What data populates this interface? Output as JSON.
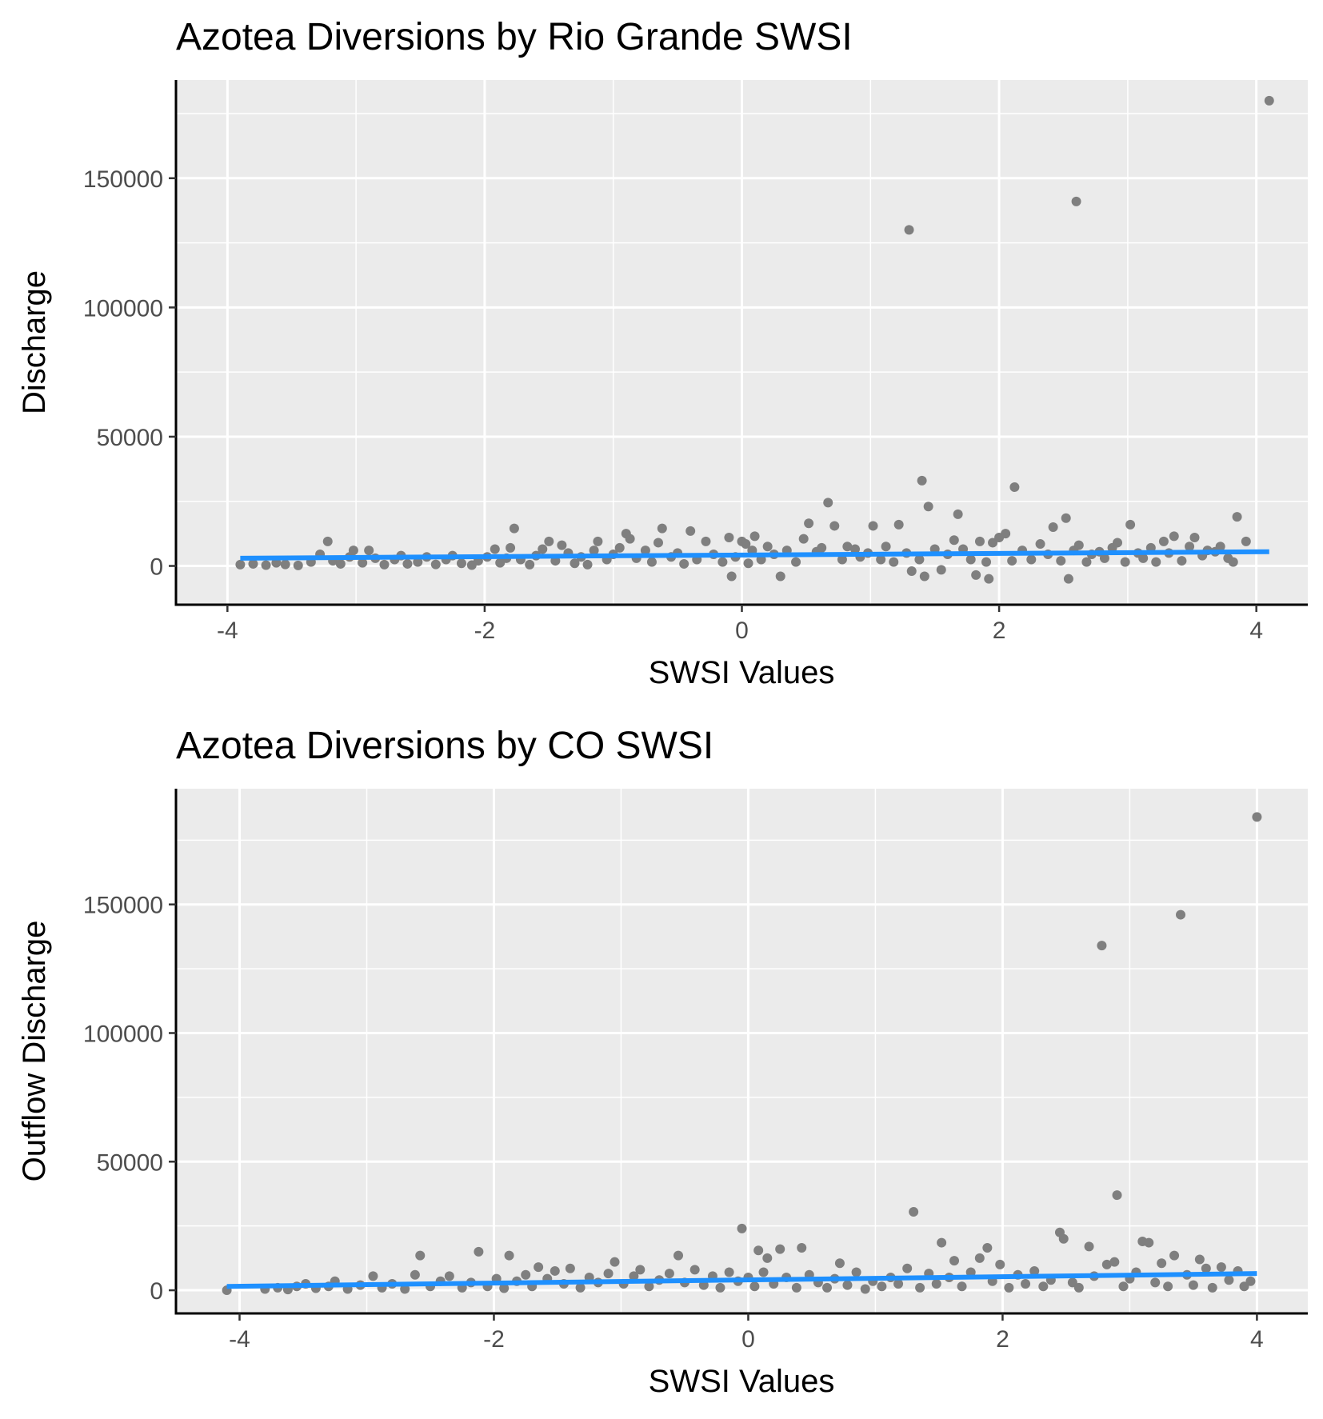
{
  "colors": {
    "panel_background": "#ebebeb",
    "grid": "#ffffff",
    "points": "#7f7f7f",
    "fit_line": "#1e90ff",
    "axis": "#000000"
  },
  "chart_data": [
    {
      "type": "scatter",
      "title": "Azotea Diversions by Rio Grande SWSI",
      "xlabel": "SWSI Values",
      "ylabel": "Discharge",
      "xlim": [
        -4.4,
        4.4
      ],
      "ylim": [
        -15000,
        188000
      ],
      "x_ticks": [
        -4,
        -2,
        0,
        2,
        4
      ],
      "x_tick_labels": [
        "-4",
        "-2",
        "0",
        "2",
        "4"
      ],
      "y_ticks": [
        0,
        50000,
        100000,
        150000
      ],
      "y_tick_labels": [
        "0",
        "50000",
        "100000",
        "150000"
      ],
      "grid": true,
      "legend": "none",
      "trend_line": {
        "x": [
          -3.9,
          4.1
        ],
        "y": [
          3000,
          5500
        ]
      },
      "points": [
        [
          -3.9,
          500
        ],
        [
          -3.8,
          800
        ],
        [
          -3.7,
          300
        ],
        [
          -3.62,
          1200
        ],
        [
          -3.55,
          600
        ],
        [
          -3.45,
          200
        ],
        [
          -3.35,
          1500
        ],
        [
          -3.28,
          4500
        ],
        [
          -3.22,
          9500
        ],
        [
          -3.18,
          2000
        ],
        [
          -3.12,
          800
        ],
        [
          -3.05,
          3500
        ],
        [
          -3.02,
          6000
        ],
        [
          -2.95,
          1200
        ],
        [
          -2.9,
          6000
        ],
        [
          -2.85,
          3000
        ],
        [
          -2.78,
          500
        ],
        [
          -2.7,
          2500
        ],
        [
          -2.65,
          4000
        ],
        [
          -2.6,
          800
        ],
        [
          -2.52,
          1500
        ],
        [
          -2.45,
          3500
        ],
        [
          -2.38,
          600
        ],
        [
          -2.3,
          2500
        ],
        [
          -2.25,
          4000
        ],
        [
          -2.18,
          1000
        ],
        [
          -2.1,
          300
        ],
        [
          -2.05,
          2000
        ],
        [
          -1.98,
          3500
        ],
        [
          -1.92,
          6500
        ],
        [
          -1.88,
          1200
        ],
        [
          -1.83,
          3000
        ],
        [
          -1.8,
          7000
        ],
        [
          -1.77,
          14500
        ],
        [
          -1.72,
          2500
        ],
        [
          -1.65,
          500
        ],
        [
          -1.6,
          4000
        ],
        [
          -1.55,
          6500
        ],
        [
          -1.5,
          9500
        ],
        [
          -1.45,
          2000
        ],
        [
          -1.4,
          8000
        ],
        [
          -1.35,
          5000
        ],
        [
          -1.3,
          1000
        ],
        [
          -1.25,
          3500
        ],
        [
          -1.2,
          500
        ],
        [
          -1.15,
          6000
        ],
        [
          -1.12,
          9500
        ],
        [
          -1.05,
          2500
        ],
        [
          -1.0,
          4500
        ],
        [
          -0.95,
          7000
        ],
        [
          -0.9,
          12500
        ],
        [
          -0.87,
          10500
        ],
        [
          -0.82,
          3000
        ],
        [
          -0.75,
          6000
        ],
        [
          -0.7,
          1500
        ],
        [
          -0.65,
          9000
        ],
        [
          -0.62,
          14500
        ],
        [
          -0.55,
          3500
        ],
        [
          -0.5,
          5000
        ],
        [
          -0.45,
          800
        ],
        [
          -0.4,
          13500
        ],
        [
          -0.35,
          2500
        ],
        [
          -0.28,
          9500
        ],
        [
          -0.22,
          4500
        ],
        [
          -0.15,
          1500
        ],
        [
          -0.1,
          11000
        ],
        [
          -0.08,
          -4000
        ],
        [
          -0.05,
          3500
        ],
        [
          0.0,
          9500
        ],
        [
          0.03,
          8500
        ],
        [
          0.05,
          1000
        ],
        [
          0.08,
          6000
        ],
        [
          0.1,
          11500
        ],
        [
          0.15,
          2500
        ],
        [
          0.2,
          7500
        ],
        [
          0.25,
          4500
        ],
        [
          0.3,
          -4000
        ],
        [
          0.35,
          6000
        ],
        [
          0.42,
          1500
        ],
        [
          0.48,
          10500
        ],
        [
          0.52,
          16500
        ],
        [
          0.58,
          5500
        ],
        [
          0.62,
          7000
        ],
        [
          0.67,
          24500
        ],
        [
          0.72,
          15500
        ],
        [
          0.78,
          2500
        ],
        [
          0.82,
          7500
        ],
        [
          0.88,
          6500
        ],
        [
          0.92,
          3500
        ],
        [
          0.98,
          5000
        ],
        [
          1.02,
          15500
        ],
        [
          1.08,
          2500
        ],
        [
          1.12,
          7500
        ],
        [
          1.18,
          1500
        ],
        [
          1.22,
          16000
        ],
        [
          1.28,
          5000
        ],
        [
          1.3,
          130000
        ],
        [
          1.32,
          -2000
        ],
        [
          1.38,
          2500
        ],
        [
          1.4,
          33000
        ],
        [
          1.42,
          -4000
        ],
        [
          1.45,
          23000
        ],
        [
          1.5,
          6500
        ],
        [
          1.55,
          -1500
        ],
        [
          1.6,
          4500
        ],
        [
          1.65,
          10000
        ],
        [
          1.68,
          20000
        ],
        [
          1.72,
          6500
        ],
        [
          1.78,
          2500
        ],
        [
          1.82,
          -3500
        ],
        [
          1.85,
          9500
        ],
        [
          1.9,
          1500
        ],
        [
          1.92,
          -5000
        ],
        [
          1.95,
          9000
        ],
        [
          2.0,
          11000
        ],
        [
          2.05,
          12500
        ],
        [
          2.1,
          2000
        ],
        [
          2.12,
          30500
        ],
        [
          2.18,
          6000
        ],
        [
          2.25,
          2500
        ],
        [
          2.32,
          8500
        ],
        [
          2.38,
          4500
        ],
        [
          2.42,
          15000
        ],
        [
          2.48,
          2000
        ],
        [
          2.52,
          18500
        ],
        [
          2.54,
          -5000
        ],
        [
          2.58,
          6000
        ],
        [
          2.6,
          141000
        ],
        [
          2.62,
          8000
        ],
        [
          2.68,
          1500
        ],
        [
          2.72,
          4500
        ],
        [
          2.78,
          5500
        ],
        [
          2.82,
          3000
        ],
        [
          2.88,
          7000
        ],
        [
          2.92,
          9000
        ],
        [
          2.98,
          1500
        ],
        [
          3.02,
          16000
        ],
        [
          3.08,
          5000
        ],
        [
          3.12,
          3000
        ],
        [
          3.18,
          7000
        ],
        [
          3.22,
          1500
        ],
        [
          3.28,
          9500
        ],
        [
          3.32,
          5000
        ],
        [
          3.36,
          11500
        ],
        [
          3.42,
          2000
        ],
        [
          3.48,
          7500
        ],
        [
          3.52,
          11000
        ],
        [
          3.58,
          4000
        ],
        [
          3.62,
          6000
        ],
        [
          3.68,
          5500
        ],
        [
          3.72,
          7500
        ],
        [
          3.78,
          3000
        ],
        [
          3.82,
          1500
        ],
        [
          3.85,
          19000
        ],
        [
          3.92,
          9500
        ],
        [
          4.1,
          180000
        ]
      ]
    },
    {
      "type": "scatter",
      "title": "Azotea Diversions by CO SWSI",
      "xlabel": "SWSI Values",
      "ylabel": "Outflow Discharge",
      "xlim": [
        -4.5,
        4.4
      ],
      "ylim": [
        -9000,
        195000
      ],
      "x_ticks": [
        -4,
        -2,
        0,
        2,
        4
      ],
      "x_tick_labels": [
        "-4",
        "-2",
        "0",
        "2",
        "4"
      ],
      "y_ticks": [
        0,
        50000,
        100000,
        150000
      ],
      "y_tick_labels": [
        "0",
        "50000",
        "100000",
        "150000"
      ],
      "grid": true,
      "legend": "none",
      "trend_line": {
        "x": [
          -4.1,
          4.0
        ],
        "y": [
          1500,
          6500
        ]
      },
      "points": [
        [
          -4.1,
          0
        ],
        [
          -3.8,
          500
        ],
        [
          -3.7,
          1000
        ],
        [
          -3.62,
          300
        ],
        [
          -3.55,
          1500
        ],
        [
          -3.48,
          2500
        ],
        [
          -3.4,
          800
        ],
        [
          -3.3,
          1500
        ],
        [
          -3.25,
          3500
        ],
        [
          -3.15,
          500
        ],
        [
          -3.05,
          2000
        ],
        [
          -2.95,
          5500
        ],
        [
          -2.88,
          1000
        ],
        [
          -2.8,
          2500
        ],
        [
          -2.7,
          500
        ],
        [
          -2.62,
          6000
        ],
        [
          -2.58,
          13500
        ],
        [
          -2.5,
          1500
        ],
        [
          -2.42,
          3500
        ],
        [
          -2.35,
          5500
        ],
        [
          -2.25,
          1000
        ],
        [
          -2.18,
          3000
        ],
        [
          -2.12,
          15000
        ],
        [
          -2.05,
          1500
        ],
        [
          -1.98,
          4500
        ],
        [
          -1.92,
          800
        ],
        [
          -1.88,
          13500
        ],
        [
          -1.82,
          3500
        ],
        [
          -1.75,
          6000
        ],
        [
          -1.7,
          1500
        ],
        [
          -1.65,
          9000
        ],
        [
          -1.58,
          4500
        ],
        [
          -1.52,
          7500
        ],
        [
          -1.45,
          2500
        ],
        [
          -1.4,
          8500
        ],
        [
          -1.32,
          1000
        ],
        [
          -1.25,
          5000
        ],
        [
          -1.18,
          3000
        ],
        [
          -1.1,
          6500
        ],
        [
          -1.05,
          11000
        ],
        [
          -0.98,
          2500
        ],
        [
          -0.9,
          5500
        ],
        [
          -0.85,
          8000
        ],
        [
          -0.78,
          1500
        ],
        [
          -0.7,
          4000
        ],
        [
          -0.62,
          6500
        ],
        [
          -0.55,
          13500
        ],
        [
          -0.5,
          3000
        ],
        [
          -0.42,
          8000
        ],
        [
          -0.35,
          2000
        ],
        [
          -0.28,
          5500
        ],
        [
          -0.22,
          1000
        ],
        [
          -0.15,
          7000
        ],
        [
          -0.08,
          3500
        ],
        [
          -0.05,
          24000
        ],
        [
          0.0,
          5000
        ],
        [
          0.05,
          1500
        ],
        [
          0.08,
          15500
        ],
        [
          0.12,
          7000
        ],
        [
          0.15,
          12500
        ],
        [
          0.2,
          2500
        ],
        [
          0.25,
          16000
        ],
        [
          0.3,
          5000
        ],
        [
          0.38,
          1000
        ],
        [
          0.42,
          16500
        ],
        [
          0.48,
          6000
        ],
        [
          0.55,
          3000
        ],
        [
          0.62,
          1000
        ],
        [
          0.68,
          4500
        ],
        [
          0.72,
          10500
        ],
        [
          0.78,
          2000
        ],
        [
          0.85,
          7000
        ],
        [
          0.92,
          500
        ],
        [
          0.98,
          3500
        ],
        [
          1.05,
          1500
        ],
        [
          1.12,
          5000
        ],
        [
          1.18,
          2500
        ],
        [
          1.25,
          8500
        ],
        [
          1.3,
          30500
        ],
        [
          1.35,
          1000
        ],
        [
          1.42,
          6500
        ],
        [
          1.48,
          2500
        ],
        [
          1.52,
          18500
        ],
        [
          1.58,
          5000
        ],
        [
          1.62,
          11500
        ],
        [
          1.68,
          1500
        ],
        [
          1.75,
          7000
        ],
        [
          1.82,
          12500
        ],
        [
          1.88,
          16500
        ],
        [
          1.92,
          3500
        ],
        [
          1.98,
          10000
        ],
        [
          2.05,
          1000
        ],
        [
          2.12,
          6000
        ],
        [
          2.18,
          2500
        ],
        [
          2.25,
          7500
        ],
        [
          2.32,
          1500
        ],
        [
          2.38,
          4000
        ],
        [
          2.45,
          22500
        ],
        [
          2.48,
          20000
        ],
        [
          2.55,
          3000
        ],
        [
          2.6,
          1000
        ],
        [
          2.68,
          17000
        ],
        [
          2.72,
          5500
        ],
        [
          2.78,
          134000
        ],
        [
          2.82,
          10000
        ],
        [
          2.88,
          11000
        ],
        [
          2.9,
          37000
        ],
        [
          2.95,
          1500
        ],
        [
          3.0,
          4500
        ],
        [
          3.05,
          7000
        ],
        [
          3.1,
          19000
        ],
        [
          3.15,
          18500
        ],
        [
          3.2,
          3000
        ],
        [
          3.25,
          10500
        ],
        [
          3.3,
          1500
        ],
        [
          3.35,
          13500
        ],
        [
          3.4,
          146000
        ],
        [
          3.45,
          6000
        ],
        [
          3.5,
          2000
        ],
        [
          3.55,
          12000
        ],
        [
          3.6,
          8500
        ],
        [
          3.65,
          1000
        ],
        [
          3.72,
          9000
        ],
        [
          3.78,
          4000
        ],
        [
          3.85,
          7500
        ],
        [
          3.9,
          1500
        ],
        [
          3.95,
          3500
        ],
        [
          4.0,
          184000
        ]
      ]
    }
  ]
}
